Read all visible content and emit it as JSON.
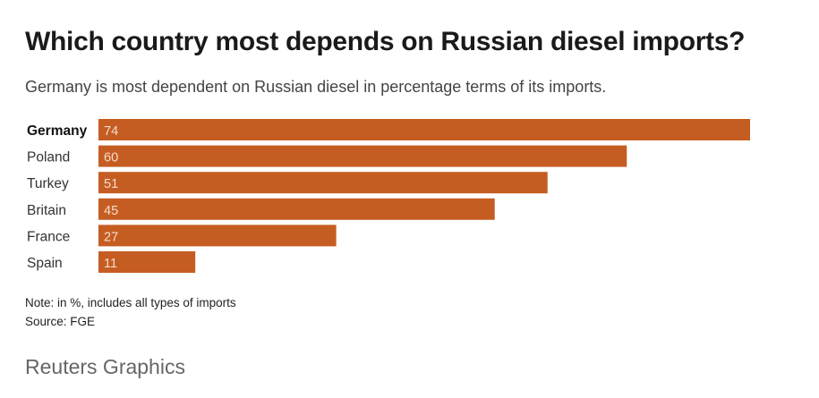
{
  "title": "Which country most depends on Russian diesel imports?",
  "subtitle": "Germany is most dependent on Russian diesel in percentage terms of its imports.",
  "note": "Note: in %, includes all types of imports",
  "source": "Source: FGE",
  "brand": "Reuters Graphics",
  "chart_data": {
    "type": "bar",
    "orientation": "horizontal",
    "categories": [
      "Germany",
      "Poland",
      "Turkey",
      "Britain",
      "France",
      "Spain"
    ],
    "values": [
      74,
      60,
      51,
      45,
      27,
      11
    ],
    "highlighted": "Germany",
    "unit": "%",
    "xlim": [
      0,
      74
    ],
    "color": "#c55d22"
  }
}
